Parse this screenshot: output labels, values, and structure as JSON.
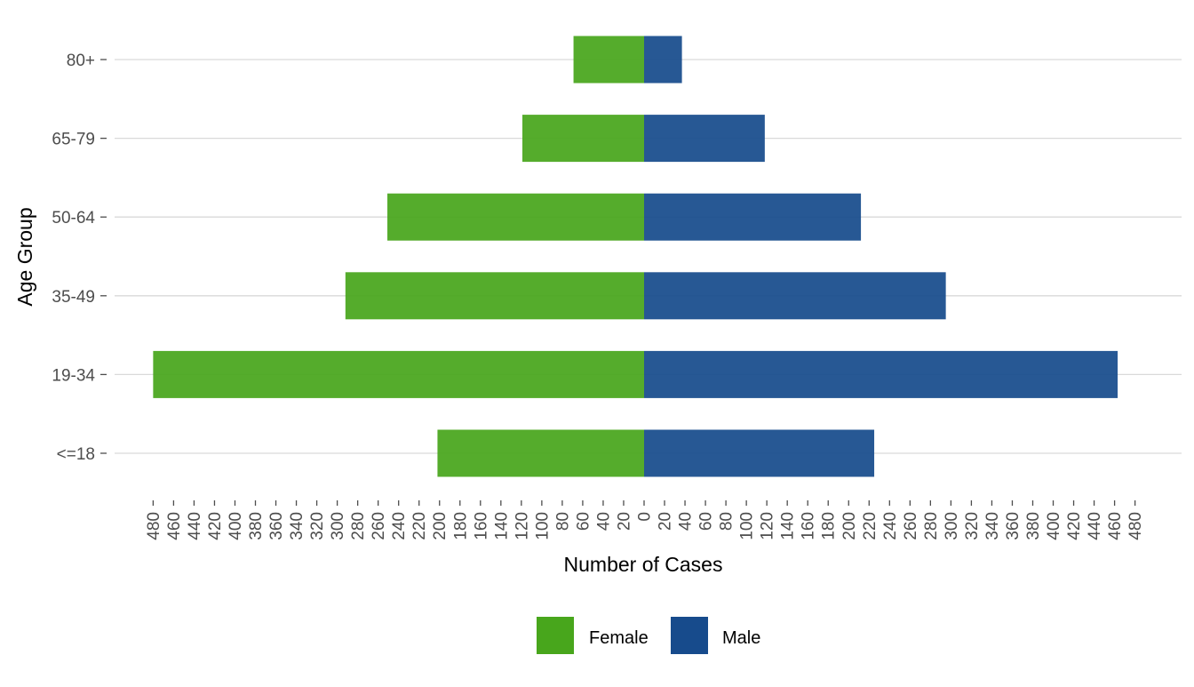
{
  "colors": {
    "female": "#48a61c",
    "male": "#174b8c",
    "grid": "#d9d9d9",
    "tick": "#4d4d4d"
  },
  "chart_data": {
    "type": "bar",
    "orientation": "horizontal",
    "subtype": "population-pyramid",
    "categories": [
      "<=18",
      "19-34",
      "35-49",
      "50-64",
      "65-79",
      "80+"
    ],
    "series": [
      {
        "name": "Female",
        "values": [
          202,
          480,
          292,
          251,
          119,
          69
        ]
      },
      {
        "name": "Male",
        "values": [
          225,
          463,
          295,
          212,
          118,
          37
        ]
      }
    ],
    "xlabel": "Number of Cases",
    "ylabel": "Age Group",
    "xlim": [
      -500,
      500
    ],
    "x_ticks": [
      -480,
      -460,
      -440,
      -420,
      -400,
      -380,
      -360,
      -340,
      -320,
      -300,
      -280,
      -260,
      -240,
      -220,
      -200,
      -180,
      -160,
      -140,
      -120,
      -100,
      -80,
      -60,
      -40,
      -20,
      0,
      20,
      40,
      60,
      80,
      100,
      120,
      140,
      160,
      180,
      200,
      220,
      240,
      260,
      280,
      300,
      320,
      340,
      360,
      380,
      400,
      420,
      440,
      460,
      480
    ],
    "x_tick_labels": [
      "480",
      "460",
      "440",
      "420",
      "400",
      "380",
      "360",
      "340",
      "320",
      "300",
      "280",
      "260",
      "240",
      "220",
      "200",
      "180",
      "160",
      "140",
      "120",
      "100",
      "80",
      "60",
      "40",
      "20",
      "0",
      "20",
      "40",
      "60",
      "80",
      "100",
      "120",
      "140",
      "160",
      "180",
      "200",
      "220",
      "240",
      "260",
      "280",
      "300",
      "320",
      "340",
      "360",
      "380",
      "400",
      "420",
      "440",
      "460",
      "480"
    ],
    "grid": "horizontal major lines only",
    "legend": {
      "position": "bottom",
      "entries": [
        "Female",
        "Male"
      ]
    }
  }
}
